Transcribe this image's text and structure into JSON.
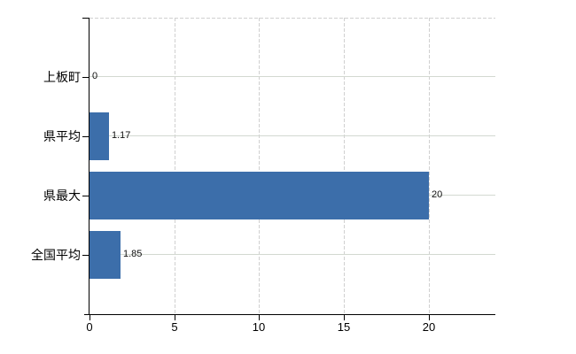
{
  "chart": {
    "background_color": "#ffffff",
    "bar_color": "#3c6eaa",
    "axis_color": "#000000",
    "h_gridline_color": "#d3d9d1",
    "v_gridline_color": "#d0d0d0",
    "top_border_color": "#d0d0d0",
    "label_color": "#000000"
  },
  "chart_data": {
    "type": "bar",
    "orientation": "horizontal",
    "title": "",
    "xlabel": "",
    "ylabel": "",
    "categories": [
      "上板町",
      "県平均",
      "県最大",
      "全国平均"
    ],
    "values": [
      0,
      1.17,
      20,
      1.85
    ],
    "value_labels": [
      "0",
      "1.17",
      "20",
      "1.85"
    ],
    "x_ticks": [
      "0",
      "5",
      "10",
      "15",
      "20"
    ],
    "x_tick_values": [
      0,
      5,
      10,
      15,
      20
    ],
    "xlim": [
      0,
      23.95
    ],
    "grid": "on",
    "legend": "none"
  }
}
